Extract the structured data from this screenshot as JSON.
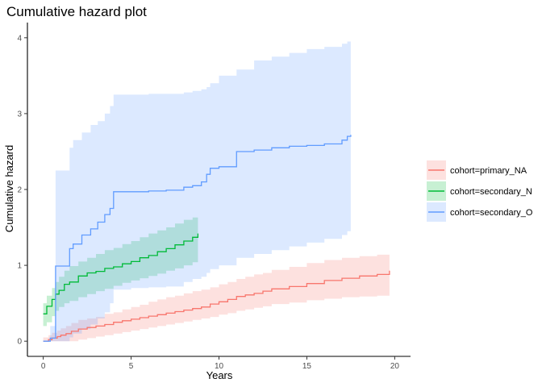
{
  "chart_data": {
    "type": "line",
    "step": true,
    "title": "Cumulative hazard plot",
    "xlabel": "Years",
    "ylabel": "Cumulative hazard",
    "xlim": [
      -0.9,
      20.9
    ],
    "ylim": [
      -0.2,
      4.2
    ],
    "x_ticks": [
      0,
      5,
      10,
      15,
      20
    ],
    "y_ticks": [
      0,
      1,
      2,
      3,
      4
    ],
    "grid": false,
    "legend_position": "right",
    "series": [
      {
        "name": "cohort=primary_NA",
        "color": "#F8766D",
        "band_color": "#F8766D",
        "x": [
          0,
          0.3,
          0.5,
          0.8,
          1.0,
          1.3,
          1.6,
          2.0,
          2.5,
          3.0,
          3.5,
          4.0,
          4.5,
          5.0,
          5.5,
          6.0,
          6.5,
          7.0,
          7.5,
          8.0,
          8.5,
          9.0,
          9.5,
          10.0,
          10.5,
          11.0,
          11.5,
          12.0,
          12.5,
          13.0,
          14.0,
          15.0,
          16.0,
          17.0,
          18.0,
          19.0,
          19.7
        ],
        "value": [
          0,
          0.02,
          0.04,
          0.06,
          0.08,
          0.1,
          0.13,
          0.16,
          0.18,
          0.2,
          0.22,
          0.25,
          0.27,
          0.29,
          0.31,
          0.33,
          0.35,
          0.37,
          0.39,
          0.41,
          0.43,
          0.45,
          0.49,
          0.52,
          0.55,
          0.59,
          0.61,
          0.63,
          0.66,
          0.69,
          0.72,
          0.76,
          0.8,
          0.83,
          0.86,
          0.88,
          0.93
        ],
        "lower": [
          0,
          0,
          0,
          0,
          0,
          0,
          0,
          0.02,
          0.04,
          0.06,
          0.08,
          0.1,
          0.12,
          0.14,
          0.16,
          0.18,
          0.2,
          0.22,
          0.24,
          0.26,
          0.28,
          0.3,
          0.32,
          0.35,
          0.37,
          0.4,
          0.42,
          0.44,
          0.46,
          0.49,
          0.51,
          0.54,
          0.56,
          0.58,
          0.59,
          0.6,
          0.62
        ],
        "upper": [
          0.05,
          0.08,
          0.11,
          0.14,
          0.17,
          0.2,
          0.24,
          0.28,
          0.3,
          0.32,
          0.36,
          0.38,
          0.42,
          0.45,
          0.48,
          0.52,
          0.55,
          0.58,
          0.6,
          0.63,
          0.66,
          0.68,
          0.71,
          0.75,
          0.78,
          0.82,
          0.85,
          0.88,
          0.9,
          0.94,
          0.98,
          1.03,
          1.07,
          1.1,
          1.12,
          1.14,
          1.15
        ]
      },
      {
        "name": "cohort=secondary_N",
        "color": "#00BA38",
        "band_color": "#00BA38",
        "x": [
          0,
          0.2,
          0.5,
          0.7,
          0.9,
          1.2,
          1.5,
          2.0,
          2.5,
          3.0,
          3.5,
          4.0,
          4.5,
          5.0,
          5.5,
          6.0,
          6.5,
          7.0,
          7.5,
          8.0,
          8.5,
          8.8
        ],
        "value": [
          0.36,
          0.46,
          0.55,
          0.62,
          0.67,
          0.75,
          0.78,
          0.86,
          0.9,
          0.92,
          0.96,
          0.98,
          1.02,
          1.05,
          1.1,
          1.13,
          1.18,
          1.22,
          1.27,
          1.32,
          1.37,
          1.42
        ],
        "lower": [
          0.2,
          0.25,
          0.33,
          0.4,
          0.45,
          0.5,
          0.53,
          0.58,
          0.62,
          0.66,
          0.69,
          0.73,
          0.77,
          0.8,
          0.83,
          0.86,
          0.89,
          0.93,
          0.96,
          1.0,
          1.04,
          1.06
        ],
        "upper": [
          0.5,
          0.6,
          0.7,
          0.78,
          0.85,
          0.93,
          0.99,
          1.05,
          1.1,
          1.15,
          1.2,
          1.23,
          1.28,
          1.32,
          1.37,
          1.42,
          1.46,
          1.5,
          1.55,
          1.6,
          1.63,
          1.66
        ]
      },
      {
        "name": "cohort=secondary_O",
        "color": "#619CFF",
        "band_color": "#619CFF",
        "x": [
          0,
          0.4,
          0.7,
          1.5,
          1.7,
          2.2,
          2.7,
          3.1,
          3.5,
          3.8,
          4.0,
          5.0,
          6.0,
          7.0,
          8.0,
          8.5,
          9.0,
          9.3,
          9.5,
          10.0,
          11.0,
          12.0,
          13.0,
          14.0,
          15.0,
          16.0,
          17.0,
          17.3,
          17.5
        ],
        "value": [
          0,
          0.04,
          0.99,
          1.22,
          1.28,
          1.4,
          1.48,
          1.57,
          1.67,
          1.75,
          1.97,
          1.97,
          1.98,
          1.99,
          2.03,
          2.05,
          2.1,
          2.2,
          2.28,
          2.3,
          2.5,
          2.52,
          2.55,
          2.57,
          2.58,
          2.6,
          2.65,
          2.7,
          2.72
        ],
        "lower": [
          0,
          0,
          0,
          0.05,
          0.1,
          0.16,
          0.22,
          0.3,
          0.38,
          0.5,
          0.68,
          0.7,
          0.71,
          0.72,
          0.78,
          0.82,
          0.85,
          0.9,
          0.95,
          1.0,
          1.1,
          1.15,
          1.2,
          1.25,
          1.3,
          1.35,
          1.4,
          1.45,
          1.5
        ],
        "upper": [
          0,
          0.2,
          2.25,
          2.55,
          2.65,
          2.75,
          2.85,
          2.9,
          3.0,
          3.1,
          3.25,
          3.25,
          3.26,
          3.26,
          3.28,
          3.3,
          3.32,
          3.35,
          3.4,
          3.5,
          3.58,
          3.7,
          3.75,
          3.8,
          3.85,
          3.88,
          3.92,
          3.95,
          3.97
        ]
      }
    ]
  }
}
